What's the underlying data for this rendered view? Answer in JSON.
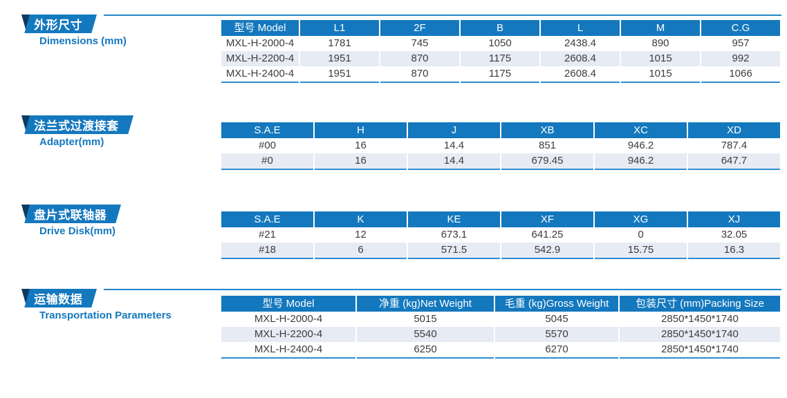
{
  "theme": {
    "accent": "#1478be",
    "banner_tip": "#0d3a63",
    "divider_line": "#2287cc",
    "row_stripe": "#e7ebf4",
    "table_bottom_border": "#2e8cd2",
    "cell_text": "#3c3c3c"
  },
  "sections": [
    {
      "id": "dimensions",
      "title_zh": "外形尺寸",
      "title_en": "Dimensions (mm)",
      "has_top_line": true,
      "table": {
        "headers": [
          "型号 Model",
          "L1",
          "2F",
          "B",
          "L",
          "M",
          "C.G"
        ],
        "rows": [
          [
            "MXL-H-2000-4",
            "1781",
            "745",
            "1050",
            "2438.4",
            "890",
            "957"
          ],
          [
            "MXL-H-2200-4",
            "1951",
            "870",
            "1175",
            "2608.4",
            "1015",
            "992"
          ],
          [
            "MXL-H-2400-4",
            "1951",
            "870",
            "1175",
            "2608.4",
            "1015",
            "1066"
          ]
        ]
      }
    },
    {
      "id": "adapter",
      "title_zh": "法兰式过渡接套",
      "title_en": "Adapter(mm)",
      "has_top_line": false,
      "table": {
        "headers": [
          "S.A.E",
          "H",
          "J",
          "XB",
          "XC",
          "XD"
        ],
        "rows": [
          [
            "#00",
            "16",
            "14.4",
            "851",
            "946.2",
            "787.4"
          ],
          [
            "#0",
            "16",
            "14.4",
            "679.45",
            "946.2",
            "647.7"
          ]
        ]
      }
    },
    {
      "id": "drive-disk",
      "title_zh": "盘片式联轴器",
      "title_en": "Drive Disk(mm)",
      "has_top_line": false,
      "table": {
        "headers": [
          "S.A.E",
          "K",
          "KE",
          "XF",
          "XG",
          "XJ"
        ],
        "rows": [
          [
            "#21",
            "12",
            "673.1",
            "641.25",
            "0",
            "32.05"
          ],
          [
            "#18",
            "6",
            "571.5",
            "542.9",
            "15.75",
            "16.3"
          ]
        ]
      }
    },
    {
      "id": "transportation",
      "title_zh": "运输数据",
      "title_en": "Transportation Parameters",
      "has_top_line": true,
      "table": {
        "headers": [
          "型号 Model",
          "净重 (kg)Net Weight",
          "毛重 (kg)Gross Weight",
          "包装尺寸 (mm)Packing Size"
        ],
        "rows": [
          [
            "MXL-H-2000-4",
            "5015",
            "5045",
            "2850*1450*1740"
          ],
          [
            "MXL-H-2200-4",
            "5540",
            "5570",
            "2850*1450*1740"
          ],
          [
            "MXL-H-2400-4",
            "6250",
            "6270",
            "2850*1450*1740"
          ]
        ]
      }
    }
  ]
}
